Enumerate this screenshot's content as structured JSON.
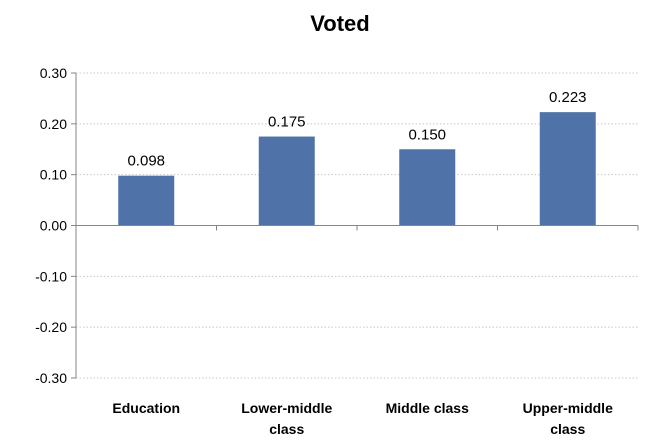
{
  "chart_data": {
    "type": "bar",
    "title": "Voted",
    "categories": [
      [
        "Education"
      ],
      [
        "Lower-middle",
        "class"
      ],
      [
        "Middle class"
      ],
      [
        "Upper-middle",
        "class"
      ]
    ],
    "values": [
      0.098,
      0.175,
      0.15,
      0.223
    ],
    "data_labels": [
      "0.098",
      "0.175",
      "0.150",
      "0.223"
    ],
    "yticks": [
      0.3,
      0.2,
      0.1,
      0.0,
      -0.1,
      -0.2,
      -0.3
    ],
    "ytick_labels": [
      "0.30",
      "0.20",
      "0.10",
      "0.00",
      "-0.10",
      "-0.20",
      "-0.30"
    ],
    "ylim": [
      -0.3,
      0.3
    ],
    "xlabel": "",
    "ylabel": "",
    "grid": true,
    "legend": "none",
    "bar_color": "#4F72A8",
    "grid_color": "#C8C8C8",
    "axis_color": "#868686"
  }
}
